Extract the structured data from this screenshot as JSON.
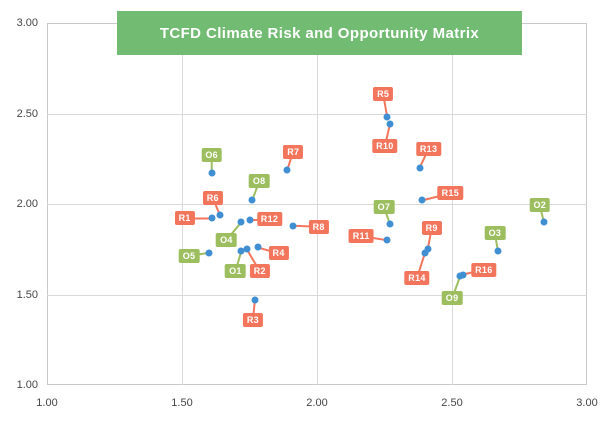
{
  "title_banner": {
    "label": "TCFD Climate Risk and Opportunity Matrix",
    "background": "#72BB72",
    "text_color": "#FFFFFF"
  },
  "chart_data": {
    "type": "scatter",
    "title": "TCFD Climate Risk and Opportunity Matrix",
    "xlim": [
      1.0,
      3.0
    ],
    "ylim": [
      1.0,
      3.0
    ],
    "x_tick_labels": [
      "1.00",
      "1.50",
      "2.00",
      "2.50",
      "3.00"
    ],
    "y_tick_labels": [
      "1.00",
      "1.50",
      "2.00",
      "2.50",
      "3.00"
    ],
    "grid": true,
    "legend": "none",
    "point_color": "#3F8FD2",
    "axis_text_color": "#454545",
    "series": [
      {
        "name": "R",
        "label_color": "#F3755C",
        "points": [
          {
            "label": "R1",
            "x": 1.61,
            "y": 1.92,
            "label_offset": [
              -27,
              0
            ]
          },
          {
            "label": "R2",
            "x": 1.74,
            "y": 1.75,
            "label_offset": [
              13,
              22
            ]
          },
          {
            "label": "R3",
            "x": 1.77,
            "y": 1.47,
            "label_offset": [
              -2,
              20
            ]
          },
          {
            "label": "R4",
            "x": 1.78,
            "y": 1.76,
            "label_offset": [
              21,
              6
            ]
          },
          {
            "label": "R5",
            "x": 2.26,
            "y": 2.48,
            "label_offset": [
              -4,
              -23
            ]
          },
          {
            "label": "R6",
            "x": 1.64,
            "y": 1.94,
            "label_offset": [
              -7,
              -17
            ]
          },
          {
            "label": "R7",
            "x": 1.89,
            "y": 2.19,
            "label_offset": [
              6,
              -18
            ]
          },
          {
            "label": "R8",
            "x": 1.91,
            "y": 1.88,
            "label_offset": [
              26,
              1
            ]
          },
          {
            "label": "R9",
            "x": 2.41,
            "y": 1.75,
            "label_offset": [
              4,
              -21
            ]
          },
          {
            "label": "R10",
            "x": 2.27,
            "y": 2.44,
            "label_offset": [
              -5,
              22
            ]
          },
          {
            "label": "R11",
            "x": 2.26,
            "y": 1.8,
            "label_offset": [
              -26,
              -4
            ]
          },
          {
            "label": "R12",
            "x": 1.75,
            "y": 1.91,
            "label_offset": [
              20,
              -1
            ]
          },
          {
            "label": "R13",
            "x": 2.38,
            "y": 2.2,
            "label_offset": [
              9,
              -19
            ]
          },
          {
            "label": "R14",
            "x": 2.4,
            "y": 1.73,
            "label_offset": [
              -8,
              25
            ]
          },
          {
            "label": "R15",
            "x": 2.39,
            "y": 2.02,
            "label_offset": [
              28,
              -7
            ]
          },
          {
            "label": "R16",
            "x": 2.54,
            "y": 1.61,
            "label_offset": [
              21,
              -5
            ]
          }
        ]
      },
      {
        "name": "O",
        "label_color": "#9DBE5F",
        "points": [
          {
            "label": "O1",
            "x": 1.72,
            "y": 1.74,
            "label_offset": [
              -6,
              20
            ]
          },
          {
            "label": "O2",
            "x": 2.84,
            "y": 1.9,
            "label_offset": [
              -4,
              -17
            ]
          },
          {
            "label": "O3",
            "x": 2.67,
            "y": 1.74,
            "label_offset": [
              -3,
              -18
            ]
          },
          {
            "label": "O4",
            "x": 1.72,
            "y": 1.9,
            "label_offset": [
              -15,
              18
            ]
          },
          {
            "label": "O5",
            "x": 1.6,
            "y": 1.73,
            "label_offset": [
              -20,
              3
            ]
          },
          {
            "label": "O6",
            "x": 1.61,
            "y": 2.17,
            "label_offset": [
              0,
              -18
            ]
          },
          {
            "label": "O7",
            "x": 2.27,
            "y": 1.89,
            "label_offset": [
              -6,
              -17
            ]
          },
          {
            "label": "O8",
            "x": 1.76,
            "y": 2.02,
            "label_offset": [
              7,
              -19
            ]
          },
          {
            "label": "O9",
            "x": 2.53,
            "y": 1.6,
            "label_offset": [
              -8,
              22
            ]
          }
        ]
      }
    ]
  }
}
